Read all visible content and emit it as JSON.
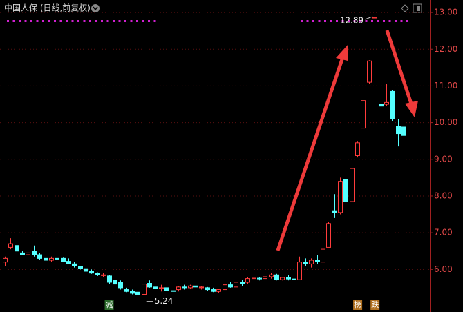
{
  "chart_data": {
    "type": "candlestick",
    "title": "中国人保 (日线,前复权)",
    "open": [
      6.2,
      6.6,
      6.65,
      6.45,
      6.4,
      6.5,
      6.4,
      6.3,
      6.25,
      6.3,
      6.3,
      6.22,
      6.15,
      6.08,
      6.02,
      5.95,
      5.9,
      5.85,
      5.82,
      5.7,
      5.65,
      5.45,
      5.4,
      5.38,
      5.32,
      5.62,
      5.52,
      5.48,
      5.5,
      5.42,
      5.45,
      5.52,
      5.5,
      5.55,
      5.5,
      5.5,
      5.45,
      5.4,
      5.45,
      5.58,
      5.52,
      5.65,
      5.65,
      5.75,
      5.76,
      5.75,
      5.8,
      5.85,
      5.72,
      5.78,
      5.74,
      5.72,
      6.2,
      6.15,
      6.25,
      6.2,
      6.6,
      7.6,
      7.55,
      8.45,
      7.85,
      9.1,
      9.85,
      11.1,
      12.85,
      10.5,
      10.5,
      10.85,
      9.9,
      9.88
    ],
    "high": [
      6.35,
      6.85,
      6.7,
      6.5,
      6.45,
      6.65,
      6.45,
      6.35,
      6.35,
      6.35,
      6.32,
      6.3,
      6.2,
      6.1,
      6.05,
      6.0,
      5.92,
      5.9,
      5.85,
      5.75,
      5.7,
      5.5,
      5.45,
      5.42,
      5.7,
      5.7,
      5.6,
      5.58,
      5.55,
      5.48,
      5.55,
      5.58,
      5.58,
      5.58,
      5.55,
      5.52,
      5.5,
      5.48,
      5.62,
      5.65,
      5.7,
      5.72,
      5.8,
      5.8,
      5.8,
      5.82,
      5.9,
      5.88,
      5.8,
      5.85,
      5.82,
      6.35,
      6.3,
      6.3,
      6.4,
      6.6,
      7.3,
      8.05,
      8.5,
      8.5,
      8.8,
      9.5,
      10.62,
      11.7,
      12.89,
      11.0,
      11.05,
      10.88,
      10.1,
      9.9
    ],
    "low": [
      6.1,
      6.55,
      6.5,
      6.4,
      6.35,
      6.35,
      6.25,
      6.2,
      6.2,
      6.25,
      6.2,
      6.15,
      6.05,
      6.0,
      5.95,
      5.88,
      5.82,
      5.8,
      5.6,
      5.55,
      5.45,
      5.38,
      5.32,
      5.3,
      5.24,
      5.5,
      5.45,
      5.4,
      5.38,
      5.35,
      5.4,
      5.45,
      5.48,
      5.5,
      5.45,
      5.42,
      5.38,
      5.35,
      5.42,
      5.5,
      5.5,
      5.55,
      5.6,
      5.72,
      5.7,
      5.72,
      5.75,
      5.7,
      5.7,
      5.7,
      5.7,
      5.72,
      6.1,
      6.05,
      6.15,
      6.15,
      6.6,
      7.4,
      7.5,
      7.8,
      7.82,
      9.05,
      9.8,
      11.05,
      11.5,
      10.4,
      10.45,
      10.05,
      9.35,
      9.55
    ],
    "close": [
      6.3,
      6.7,
      6.5,
      6.4,
      6.45,
      6.4,
      6.3,
      6.25,
      6.3,
      6.28,
      6.22,
      6.15,
      6.1,
      6.02,
      5.95,
      5.9,
      5.85,
      5.85,
      5.65,
      5.6,
      5.5,
      5.4,
      5.35,
      5.32,
      5.6,
      5.52,
      5.48,
      5.5,
      5.42,
      5.4,
      5.52,
      5.5,
      5.55,
      5.52,
      5.52,
      5.45,
      5.4,
      5.45,
      5.58,
      5.52,
      5.65,
      5.62,
      5.75,
      5.78,
      5.75,
      5.8,
      5.85,
      5.72,
      5.78,
      5.74,
      5.72,
      6.2,
      6.15,
      6.25,
      6.22,
      6.55,
      7.25,
      7.55,
      8.4,
      7.85,
      8.75,
      9.45,
      10.6,
      11.68,
      12.87,
      10.45,
      10.55,
      10.1,
      9.7,
      9.65
    ],
    "up_color": "#ff3c3c",
    "down_color": "#54ffff",
    "high_label": "12.89",
    "low_label": "5.24",
    "events": [
      {
        "label": "减",
        "index": 18
      },
      {
        "label": "榜",
        "index": 61
      },
      {
        "label": "跌",
        "index": 64
      }
    ],
    "ylim": [
      4.84,
      13.34
    ],
    "yticks": [
      {
        "value": 6,
        "label": "6.00"
      },
      {
        "value": 7,
        "label": "7.00"
      },
      {
        "value": 8,
        "label": "8.00"
      },
      {
        "value": 9,
        "label": "9.00"
      },
      {
        "value": 10,
        "label": "10.00"
      },
      {
        "value": 11,
        "label": "11.00"
      },
      {
        "value": 12,
        "label": "12.00"
      },
      {
        "value": 13,
        "label": "13.00"
      }
    ],
    "grid": true
  }
}
